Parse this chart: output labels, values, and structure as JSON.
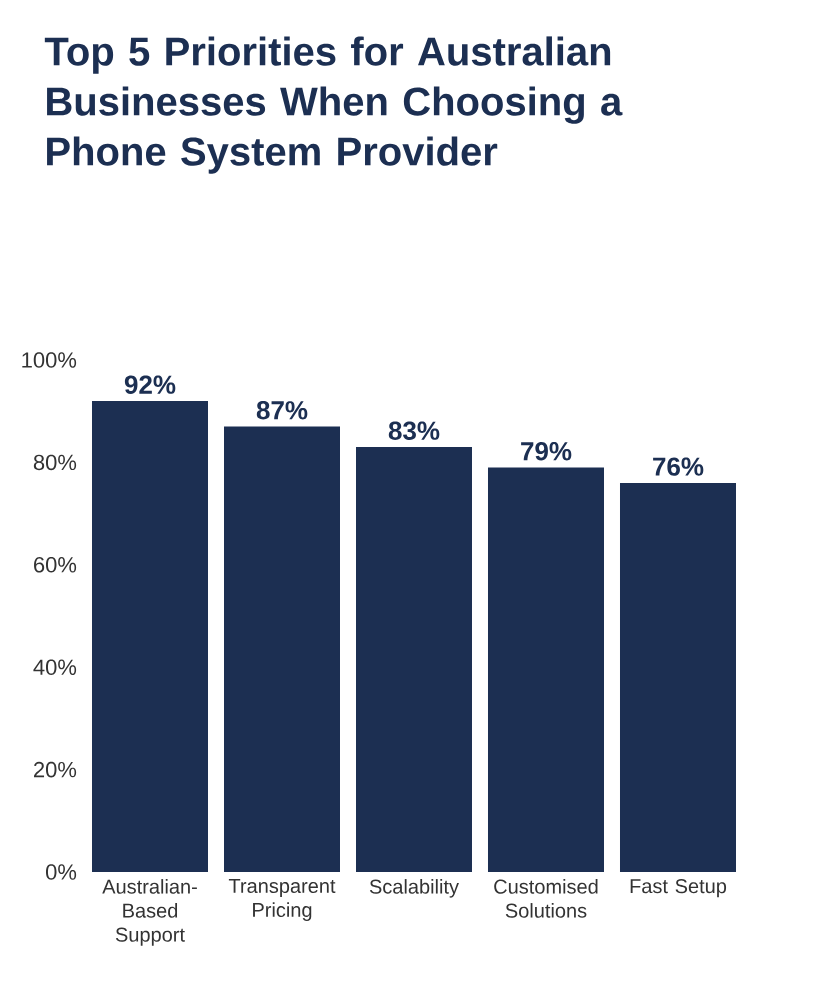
{
  "chart_data": {
    "type": "bar",
    "title": "Top 5 Priorities for Australian Businesses When Choosing a Phone System Provider",
    "categories": [
      "Australian-Based Support",
      "Transparent Pricing",
      "Scalability",
      "Customised Solutions",
      "Fast Setup"
    ],
    "values": [
      92,
      87,
      83,
      79,
      76
    ],
    "value_labels": [
      "92%",
      "87%",
      "83%",
      "79%",
      "76%"
    ],
    "color": "#1c2f52",
    "ylim": [
      0,
      100
    ],
    "yticks": [
      {
        "value": 0,
        "label": "0%"
      },
      {
        "value": 20,
        "label": "20%"
      },
      {
        "value": 40,
        "label": "40%"
      },
      {
        "value": 60,
        "label": "60%"
      },
      {
        "value": 80,
        "label": "80%"
      },
      {
        "value": 100,
        "label": "100%"
      }
    ]
  }
}
